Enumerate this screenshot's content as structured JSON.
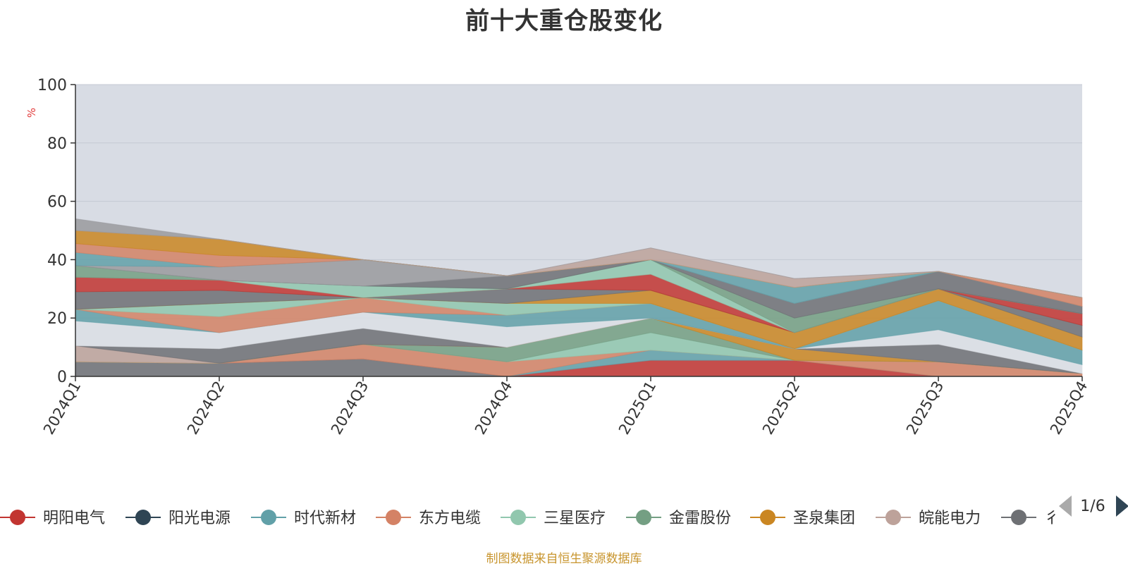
{
  "chart_data": {
    "type": "area",
    "stacked": true,
    "title": "前十大重仓股变化",
    "ylabel": "%",
    "ylim": [
      0,
      100
    ],
    "yticks": [
      0,
      20,
      40,
      60,
      80,
      100
    ],
    "categories": [
      "2024Q1",
      "2024Q2",
      "2024Q3",
      "2024Q4",
      "2025Q1",
      "2025Q2",
      "2025Q3",
      "2025Q4"
    ],
    "grid": true,
    "legend_position": "bottom",
    "series": [
      {
        "name": "",
        "color": "#6e7074",
        "values": [
          5,
          4.5,
          6,
          0,
          0,
          0,
          0,
          0
        ]
      },
      {
        "name": "",
        "color": "#c23531",
        "values": [
          0,
          0,
          0,
          0,
          5.5,
          5.5,
          0,
          0
        ]
      },
      {
        "name": "",
        "color": "#61a0a8",
        "values": [
          0,
          0,
          0,
          0,
          3.5,
          0,
          0,
          0
        ]
      },
      {
        "name": "",
        "color": "#d48265",
        "values": [
          0,
          0,
          5,
          5,
          0,
          0,
          5,
          1
        ]
      },
      {
        "name": "",
        "color": "#91c7ae",
        "values": [
          0,
          0,
          0,
          0,
          6,
          0,
          0,
          0
        ]
      },
      {
        "name": "",
        "color": "#749f83",
        "values": [
          0,
          0,
          0,
          5,
          5,
          0,
          0,
          0
        ]
      },
      {
        "name": "",
        "color": "#ca8622",
        "values": [
          0,
          0,
          0,
          0,
          0,
          4,
          0,
          0
        ]
      },
      {
        "name": "",
        "color": "#bda29a",
        "values": [
          5.5,
          0,
          0,
          0,
          0,
          0,
          0,
          0
        ]
      },
      {
        "name": "",
        "color": "#6e7074",
        "values": [
          0,
          5,
          5.5,
          0,
          0,
          0,
          6,
          0
        ]
      },
      {
        "name": "",
        "color": "#dcdfe5",
        "values": [
          8.5,
          5.5,
          5.5,
          7,
          0,
          0,
          5,
          3
        ]
      },
      {
        "name": "",
        "color": "#61a0a8",
        "values": [
          4,
          0,
          0,
          4,
          5,
          0,
          10,
          5
        ]
      },
      {
        "name": "",
        "color": "#d48265",
        "values": [
          0,
          5.5,
          5,
          0,
          0,
          0,
          0,
          0
        ]
      },
      {
        "name": "",
        "color": "#91c7ae",
        "values": [
          0,
          4.5,
          0,
          4,
          0,
          0,
          0,
          0
        ]
      },
      {
        "name": "",
        "color": "#ca8622",
        "values": [
          0,
          0,
          0,
          0,
          4.5,
          5.5,
          4,
          4.5
        ]
      },
      {
        "name": "",
        "color": "#6e7074",
        "values": [
          6,
          4.5,
          0,
          5,
          0,
          0,
          0,
          4
        ]
      },
      {
        "name": "",
        "color": "#c23531",
        "values": [
          5,
          3.5,
          0,
          0,
          5.5,
          0,
          0,
          4
        ]
      },
      {
        "name": "",
        "color": "#91c7ae",
        "values": [
          0,
          0,
          4,
          0,
          5,
          0,
          0,
          0
        ]
      },
      {
        "name": "",
        "color": "#749f83",
        "values": [
          4,
          0,
          0,
          0,
          0,
          5,
          0,
          0
        ]
      },
      {
        "name": "",
        "color": "#6e7074",
        "values": [
          0,
          0,
          0,
          4.5,
          0,
          5,
          6,
          2.5
        ]
      },
      {
        "name": "",
        "color": "#9a9a9e",
        "values": [
          0,
          4.5,
          9,
          0,
          0,
          0,
          0,
          0
        ]
      },
      {
        "name": "",
        "color": "#61a0a8",
        "values": [
          4.5,
          0,
          0,
          0,
          0,
          5.5,
          0,
          0
        ]
      },
      {
        "name": "",
        "color": "#d48265",
        "values": [
          3,
          4,
          0,
          0,
          0,
          0,
          0,
          3
        ]
      },
      {
        "name": "",
        "color": "#ca8622",
        "values": [
          4.5,
          5.5,
          0,
          0,
          0,
          0,
          0,
          0
        ]
      },
      {
        "name": "",
        "color": "#bda29a",
        "values": [
          0,
          0,
          0,
          0,
          4,
          3,
          0,
          0
        ]
      },
      {
        "name": "",
        "color": "#9a9a9e",
        "values": [
          4,
          0,
          0,
          0,
          0,
          0,
          0,
          0
        ]
      }
    ],
    "background_series_color": "#d8dce4",
    "legend": {
      "items": [
        {
          "label": "明阳电气",
          "color": "#c23531"
        },
        {
          "label": "阳光电源",
          "color": "#2f4554"
        },
        {
          "label": "时代新材",
          "color": "#61a0a8"
        },
        {
          "label": "东方电缆",
          "color": "#d48265"
        },
        {
          "label": "三星医疗",
          "color": "#91c7ae"
        },
        {
          "label": "金雷股份",
          "color": "#749f83"
        },
        {
          "label": "圣泉集团",
          "color": "#ca8622"
        },
        {
          "label": "皖能电力",
          "color": "#bda29a"
        },
        {
          "label": "彳",
          "color": "#6e7074"
        }
      ],
      "page_text": "1/6"
    }
  },
  "footer": {
    "source_note": "制图数据来自恒生聚源数据库"
  }
}
